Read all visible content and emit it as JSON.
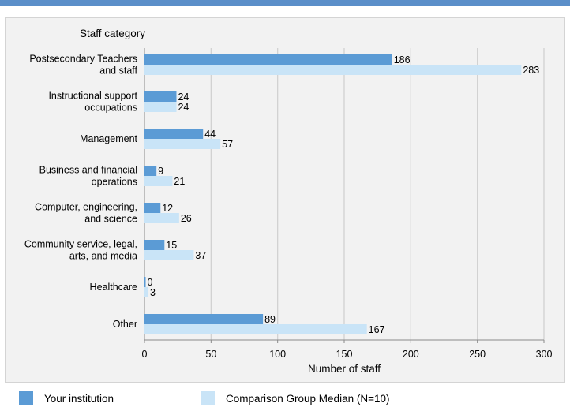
{
  "chart_data": {
    "type": "bar",
    "orientation": "horizontal",
    "title": "",
    "ylabel": "Staff category",
    "xlabel": "Number of staff",
    "xlim": [
      0,
      300
    ],
    "xticks": [
      "0",
      "50",
      "100",
      "150",
      "200",
      "250",
      "300"
    ],
    "grid": true,
    "legend_position": "bottom",
    "categories": [
      [
        "Postsecondary Teachers",
        "and staff"
      ],
      [
        "Instructional support",
        "occupations"
      ],
      [
        "Management"
      ],
      [
        "Business and financial",
        "operations"
      ],
      [
        "Computer, engineering,",
        "and science"
      ],
      [
        "Community service, legal,",
        "arts, and media"
      ],
      [
        "Healthcare"
      ],
      [
        "Other"
      ]
    ],
    "series": [
      {
        "name": "Your institution",
        "color": "#5b9bd5",
        "values": [
          186,
          24,
          44,
          9,
          12,
          15,
          0,
          89
        ]
      },
      {
        "name": "Comparison Group Median (N=10)",
        "color": "#c9e4f7",
        "values": [
          283,
          24,
          57,
          21,
          26,
          37,
          3,
          167
        ]
      }
    ]
  },
  "colors": {
    "top_rule": "#5b8fc9",
    "panel_bg": "#f2f2f2",
    "grid": "#cfcfcf"
  }
}
